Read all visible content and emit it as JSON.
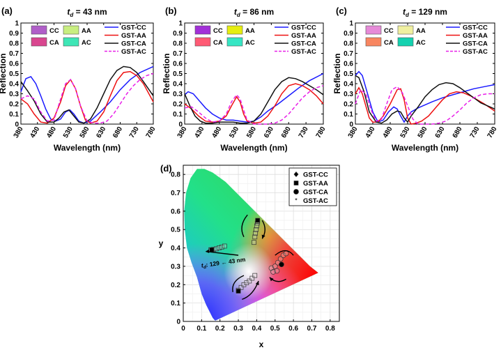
{
  "figure": {
    "xlabel": "Wavelength (nm)",
    "ylabel": "Reflection"
  },
  "chart_data": [
    {
      "type": "line",
      "panel": "(a)",
      "title_main": "t",
      "title_sub": "d",
      "title_rest": " = 43 nm",
      "xlim": [
        380,
        780
      ],
      "ylim": [
        0,
        1
      ],
      "xticks": [
        "380",
        "430",
        "480",
        "530",
        "580",
        "630",
        "680",
        "730",
        "780"
      ],
      "yticks": [
        "0",
        "0.1",
        "0.2",
        "0.3",
        "0.4",
        "0.5",
        "0.6",
        "0.7",
        "0.8",
        "0.9",
        "1"
      ],
      "swatches": [
        {
          "label": "CC",
          "color": "#b05ec8"
        },
        {
          "label": "AA",
          "color": "#c8ee80"
        },
        {
          "label": "CA",
          "color": "#d9468f"
        },
        {
          "label": "AC",
          "color": "#3ee6b6"
        }
      ],
      "series": [
        {
          "name": "GST-CC",
          "color": "#1a1aff",
          "dash": false,
          "x": [
            380,
            395,
            410,
            425,
            440,
            455,
            470,
            485,
            500,
            515,
            528,
            540,
            555,
            570,
            590,
            620,
            650,
            680,
            710,
            740,
            780
          ],
          "y": [
            0.32,
            0.45,
            0.47,
            0.4,
            0.28,
            0.15,
            0.05,
            0.03,
            0.05,
            0.12,
            0.14,
            0.1,
            0.03,
            0.01,
            0.03,
            0.12,
            0.22,
            0.34,
            0.44,
            0.51,
            0.57
          ]
        },
        {
          "name": "GST-AA",
          "color": "#ee1111",
          "dash": false,
          "x": [
            380,
            400,
            420,
            440,
            460,
            480,
            500,
            515,
            530,
            545,
            560,
            575,
            590,
            610,
            630,
            650,
            670,
            690,
            710,
            730,
            750,
            780
          ],
          "y": [
            0.25,
            0.2,
            0.1,
            0.02,
            0.01,
            0.06,
            0.22,
            0.38,
            0.44,
            0.35,
            0.18,
            0.04,
            0.01,
            0.03,
            0.12,
            0.28,
            0.43,
            0.51,
            0.52,
            0.48,
            0.4,
            0.22
          ]
        },
        {
          "name": "GST-CA",
          "color": "#111111",
          "dash": false,
          "x": [
            380,
            400,
            420,
            440,
            460,
            480,
            495,
            510,
            525,
            540,
            555,
            570,
            590,
            610,
            630,
            650,
            670,
            690,
            710,
            730,
            750,
            780
          ],
          "y": [
            0.42,
            0.33,
            0.23,
            0.1,
            0.02,
            0.02,
            0.06,
            0.12,
            0.14,
            0.08,
            0.02,
            0.01,
            0.05,
            0.16,
            0.3,
            0.44,
            0.53,
            0.57,
            0.56,
            0.51,
            0.42,
            0.28
          ]
        },
        {
          "name": "GST-AC",
          "color": "#e820e8",
          "dash": true,
          "x": [
            380,
            400,
            420,
            440,
            460,
            480,
            500,
            515,
            530,
            545,
            560,
            580,
            600,
            620,
            640,
            660,
            680,
            700,
            720,
            740,
            760,
            780
          ],
          "y": [
            0.25,
            0.28,
            0.25,
            0.12,
            0.03,
            0.04,
            0.25,
            0.4,
            0.44,
            0.35,
            0.18,
            0.03,
            0.01,
            0.01,
            0.03,
            0.1,
            0.2,
            0.3,
            0.38,
            0.44,
            0.48,
            0.5
          ]
        }
      ]
    },
    {
      "type": "line",
      "panel": "(b)",
      "title_main": "t",
      "title_sub": "d",
      "title_rest": " = 86 nm",
      "xlim": [
        380,
        780
      ],
      "ylim": [
        0,
        1
      ],
      "xticks": [
        "380",
        "430",
        "480",
        "530",
        "580",
        "630",
        "680",
        "730",
        "780"
      ],
      "yticks": [
        "0",
        "0.1",
        "0.2",
        "0.3",
        "0.4",
        "0.5",
        "0.6",
        "0.7",
        "0.8",
        "0.9",
        "1"
      ],
      "swatches": [
        {
          "label": "CC",
          "color": "#a230d8"
        },
        {
          "label": "AA",
          "color": "#e6ee10"
        },
        {
          "label": "CA",
          "color": "#ff5a74"
        },
        {
          "label": "AC",
          "color": "#36e6c4"
        }
      ],
      "series": [
        {
          "name": "GST-CC",
          "color": "#1a1aff",
          "dash": false,
          "x": [
            380,
            390,
            405,
            420,
            440,
            460,
            480,
            500,
            520,
            540,
            560,
            580,
            600,
            620,
            650,
            680,
            710,
            740,
            780
          ],
          "y": [
            0.29,
            0.32,
            0.3,
            0.24,
            0.16,
            0.1,
            0.06,
            0.04,
            0.04,
            0.03,
            0.02,
            0.03,
            0.07,
            0.13,
            0.2,
            0.28,
            0.36,
            0.43,
            0.5
          ]
        },
        {
          "name": "GST-AA",
          "color": "#ee1111",
          "dash": false,
          "x": [
            380,
            400,
            420,
            440,
            460,
            480,
            500,
            515,
            530,
            540,
            550,
            560,
            580,
            600,
            620,
            640,
            660,
            680,
            700,
            720,
            740,
            760,
            780
          ],
          "y": [
            0.2,
            0.15,
            0.08,
            0.03,
            0.02,
            0.03,
            0.08,
            0.18,
            0.27,
            0.22,
            0.1,
            0.03,
            0.01,
            0.02,
            0.08,
            0.18,
            0.3,
            0.38,
            0.4,
            0.38,
            0.34,
            0.28,
            0.2
          ]
        },
        {
          "name": "GST-CA",
          "color": "#111111",
          "dash": false,
          "x": [
            380,
            395,
            410,
            425,
            440,
            460,
            480,
            500,
            520,
            540,
            560,
            580,
            600,
            620,
            640,
            660,
            680,
            700,
            720,
            740,
            760,
            780
          ],
          "y": [
            0.3,
            0.18,
            0.08,
            0.03,
            0.01,
            0.01,
            0.02,
            0.02,
            0.02,
            0.01,
            0.01,
            0.03,
            0.1,
            0.22,
            0.34,
            0.42,
            0.46,
            0.45,
            0.42,
            0.38,
            0.34,
            0.29
          ]
        },
        {
          "name": "GST-AC",
          "color": "#e820e8",
          "dash": true,
          "x": [
            380,
            400,
            420,
            440,
            460,
            480,
            500,
            515,
            530,
            540,
            550,
            560,
            580,
            600,
            620,
            640,
            660,
            680,
            700,
            720,
            740,
            760,
            780
          ],
          "y": [
            0.16,
            0.17,
            0.12,
            0.06,
            0.02,
            0.03,
            0.1,
            0.22,
            0.29,
            0.25,
            0.14,
            0.04,
            0.0,
            0.0,
            0.0,
            0.01,
            0.04,
            0.1,
            0.18,
            0.26,
            0.32,
            0.36,
            0.38
          ]
        }
      ]
    },
    {
      "type": "line",
      "panel": "(c)",
      "title_main": "t",
      "title_sub": "d",
      "title_rest": " = 129 nm",
      "xlim": [
        380,
        780
      ],
      "ylim": [
        0,
        1
      ],
      "xticks": [
        "380",
        "430",
        "480",
        "530",
        "580",
        "630",
        "680",
        "730",
        "780"
      ],
      "yticks": [
        "0",
        "0.1",
        "0.2",
        "0.3",
        "0.4",
        "0.5",
        "0.6",
        "0.7",
        "0.8",
        "0.9",
        "1"
      ],
      "swatches": [
        {
          "label": "CC",
          "color": "#e68ad8"
        },
        {
          "label": "AA",
          "color": "#f0f0a0"
        },
        {
          "label": "CA",
          "color": "#f88660"
        },
        {
          "label": "AC",
          "color": "#14d2b0"
        }
      ],
      "series": [
        {
          "name": "GST-CC",
          "color": "#1a1aff",
          "dash": false,
          "x": [
            380,
            390,
            400,
            415,
            430,
            445,
            460,
            475,
            490,
            500,
            510,
            520,
            530,
            540,
            560,
            580,
            600,
            630,
            660,
            690,
            720,
            750,
            780
          ],
          "y": [
            0.48,
            0.52,
            0.48,
            0.3,
            0.12,
            0.02,
            0.04,
            0.12,
            0.17,
            0.15,
            0.08,
            0.02,
            0.08,
            0.12,
            0.16,
            0.19,
            0.22,
            0.26,
            0.29,
            0.32,
            0.35,
            0.37,
            0.39
          ]
        },
        {
          "name": "GST-AA",
          "color": "#ee1111",
          "dash": false,
          "x": [
            380,
            390,
            400,
            410,
            420,
            430,
            445,
            460,
            480,
            500,
            510,
            520,
            530,
            540,
            555,
            570,
            590,
            610,
            630,
            650,
            670,
            690,
            710,
            730,
            750,
            780
          ],
          "y": [
            0.3,
            0.36,
            0.3,
            0.18,
            0.06,
            0.02,
            0.02,
            0.08,
            0.2,
            0.34,
            0.35,
            0.24,
            0.06,
            0.0,
            0.01,
            0.03,
            0.08,
            0.16,
            0.24,
            0.3,
            0.32,
            0.31,
            0.28,
            0.24,
            0.2,
            0.13
          ]
        },
        {
          "name": "GST-CA",
          "color": "#111111",
          "dash": false,
          "x": [
            380,
            390,
            405,
            420,
            440,
            455,
            470,
            485,
            500,
            510,
            520,
            530,
            540,
            560,
            580,
            600,
            620,
            640,
            660,
            680,
            700,
            720,
            740,
            760,
            780
          ],
          "y": [
            0.48,
            0.46,
            0.32,
            0.12,
            0.02,
            0.01,
            0.04,
            0.1,
            0.13,
            0.12,
            0.06,
            0.02,
            0.08,
            0.17,
            0.27,
            0.34,
            0.39,
            0.41,
            0.4,
            0.36,
            0.31,
            0.26,
            0.21,
            0.18,
            0.15
          ]
        },
        {
          "name": "GST-AC",
          "color": "#e820e8",
          "dash": true,
          "x": [
            380,
            395,
            410,
            425,
            440,
            455,
            470,
            485,
            500,
            515,
            530,
            545,
            560,
            580,
            600,
            620,
            640,
            660,
            680,
            700,
            720,
            740,
            760,
            780
          ],
          "y": [
            0.2,
            0.34,
            0.3,
            0.14,
            0.03,
            0.05,
            0.2,
            0.34,
            0.37,
            0.31,
            0.18,
            0.05,
            0.0,
            0.0,
            0.0,
            0.01,
            0.03,
            0.08,
            0.14,
            0.21,
            0.26,
            0.29,
            0.3,
            0.3
          ]
        }
      ]
    },
    {
      "type": "scatter",
      "panel": "(d)",
      "title": "",
      "xlabel": "x",
      "ylabel": "y",
      "xlim": [
        0,
        0.85
      ],
      "ylim": [
        0,
        0.85
      ],
      "xticks": [
        "0",
        "0.1",
        "0.2",
        "0.3",
        "0.4",
        "0.5",
        "0.6",
        "0.7",
        "0.8"
      ],
      "yticks": [
        "0",
        "0.1",
        "0.2",
        "0.3",
        "0.4",
        "0.5",
        "0.6",
        "0.7",
        "0.8"
      ],
      "legend": [
        {
          "label": "GST-CC",
          "marker": "diamond"
        },
        {
          "label": "GST-AA",
          "marker": "square"
        },
        {
          "label": "GST-CA",
          "marker": "circle"
        },
        {
          "label": "GST-AC",
          "marker": "star"
        }
      ],
      "annotation_pre": "t",
      "annotation_sub": "d",
      "annotation_rest": ": 129 ← 43 nm",
      "groups": [
        {
          "name": "upper-right squares",
          "marker": "square",
          "points": [
            [
              0.385,
              0.43
            ],
            [
              0.39,
              0.46
            ],
            [
              0.393,
              0.48
            ],
            [
              0.397,
              0.5
            ],
            [
              0.4,
              0.52
            ],
            [
              0.403,
              0.535
            ],
            [
              0.405,
              0.545
            ]
          ],
          "solid": [
            0.405,
            0.55
          ]
        },
        {
          "name": "left cluster",
          "marker": "square",
          "points": [
            [
              0.15,
              0.39
            ],
            [
              0.165,
              0.392
            ],
            [
              0.18,
              0.395
            ],
            [
              0.195,
              0.4
            ],
            [
              0.21,
              0.405
            ],
            [
              0.225,
              0.41
            ]
          ],
          "solid": [
            0.155,
            0.39
          ]
        },
        {
          "name": "right circles",
          "marker": "circle",
          "points": [
            [
              0.48,
              0.29
            ],
            [
              0.5,
              0.3
            ],
            [
              0.515,
              0.32
            ],
            [
              0.53,
              0.34
            ],
            [
              0.545,
              0.36
            ],
            [
              0.56,
              0.37
            ],
            [
              0.49,
              0.27
            ],
            [
              0.51,
              0.275
            ]
          ],
          "solid": [
            0.535,
            0.31
          ]
        },
        {
          "name": "lower squares",
          "marker": "square",
          "points": [
            [
              0.3,
              0.17
            ],
            [
              0.315,
              0.185
            ],
            [
              0.33,
              0.2
            ],
            [
              0.345,
              0.21
            ],
            [
              0.36,
              0.22
            ],
            [
              0.375,
              0.235
            ],
            [
              0.39,
              0.25
            ]
          ],
          "solid": [
            0.3,
            0.165
          ]
        }
      ]
    }
  ]
}
